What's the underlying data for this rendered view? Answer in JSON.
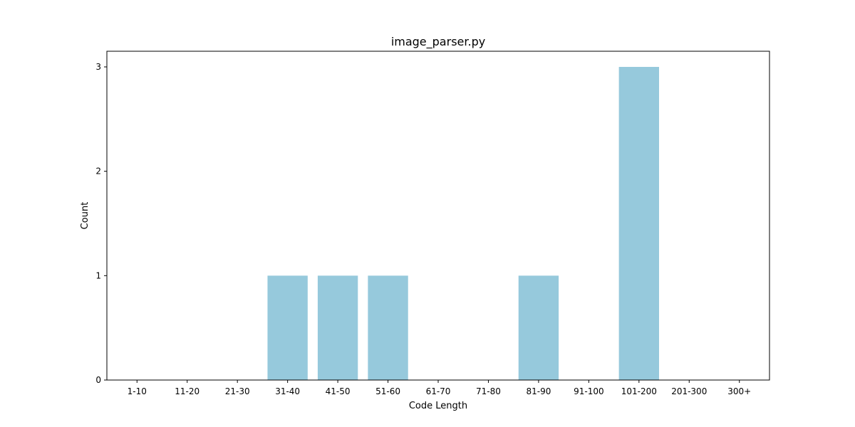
{
  "chart_data": {
    "type": "bar",
    "title": "image_parser.py",
    "xlabel": "Code Length",
    "ylabel": "Count",
    "categories": [
      "1-10",
      "11-20",
      "21-30",
      "31-40",
      "41-50",
      "51-60",
      "61-70",
      "71-80",
      "81-90",
      "91-100",
      "101-200",
      "201-300",
      "300+"
    ],
    "values": [
      0,
      0,
      0,
      1,
      1,
      1,
      0,
      0,
      1,
      0,
      3,
      0,
      0
    ],
    "ylim": [
      0,
      3.15
    ],
    "yticks": [
      0,
      1,
      2,
      3
    ],
    "grid": false,
    "bar_color": "#96c9dc"
  }
}
